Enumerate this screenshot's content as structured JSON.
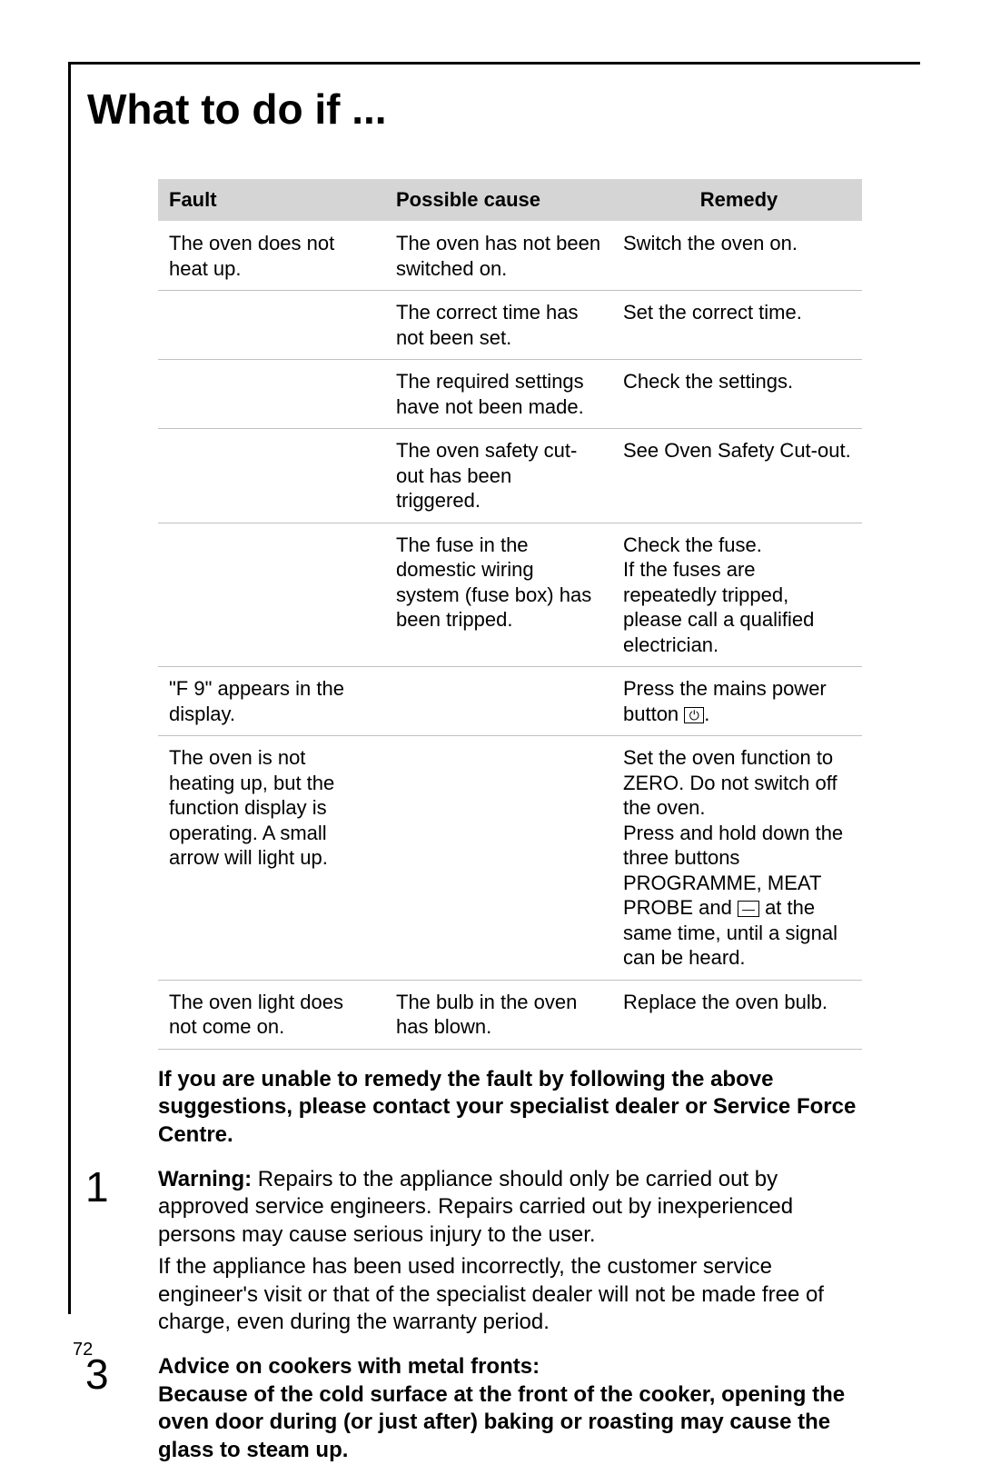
{
  "title": "What to do if ...",
  "table": {
    "headers": [
      "Fault",
      "Possible cause",
      "Remedy"
    ],
    "rows": [
      {
        "fault": "The oven does not heat up.",
        "cause": "The oven has not been switched on.",
        "remedy": "Switch the oven on."
      },
      {
        "fault": "",
        "cause": "The correct time has not been set.",
        "remedy": "Set the correct time."
      },
      {
        "fault": "",
        "cause": "The required settings have not been made.",
        "remedy": "Check the settings."
      },
      {
        "fault": "",
        "cause": "The oven safety cut-out has been triggered.",
        "remedy": "See Oven Safety Cut-out."
      },
      {
        "fault": "",
        "cause": "The fuse in the domestic wiring system (fuse box) has been tripped.",
        "remedy": "Check the fuse.\nIf the fuses are repeatedly tripped, please call a qualified electrician."
      },
      {
        "fault": "\"F 9\" appears in the display.",
        "cause": "",
        "remedy_pre": "Press the mains power button ",
        "remedy_icon": "⏻",
        "remedy_post": "."
      },
      {
        "fault": "The oven is not heating up, but the function display is operating. A small arrow will light up.",
        "cause": "",
        "remedy_pre": "Set the oven function to ZERO. Do not switch off the oven.\nPress and hold down the three buttons PROGRAMME, MEAT PROBE and ",
        "remedy_icon": "—",
        "remedy_post": " at the same time, until a signal can be heard."
      },
      {
        "fault": "The oven light does not come on.",
        "cause": "The bulb in the oven has blown.",
        "remedy": "Replace the oven bulb."
      }
    ]
  },
  "notes": {
    "intro": "If you are unable to remedy the fault by following the above suggestions, please contact your specialist dealer or Service Force Centre.",
    "warning_num": "1",
    "warning_label": "Warning:",
    "warning_text": " Repairs to the appliance should only be carried out by approved service engineers. Repairs carried out by inexperienced persons may cause serious injury to the user.",
    "warranty_text": "If the appliance has been used incorrectly, the customer service engineer's visit or that of the specialist dealer will not be made free of charge, even during the warranty period.",
    "advice_num": "3",
    "advice_label": "Advice on cookers with metal fronts:",
    "advice_text": "Because of the cold surface at the front of the cooker, opening the oven door during (or just after) baking or roasting may cause the glass to steam up."
  },
  "page_number": "72",
  "style": {
    "page_bg": "#ffffff",
    "text_color": "#000000",
    "header_bg": "#d5d5d5",
    "row_border": "#c0c0c0",
    "title_fontsize": 46,
    "body_fontsize": 24,
    "table_fontsize": 22
  }
}
